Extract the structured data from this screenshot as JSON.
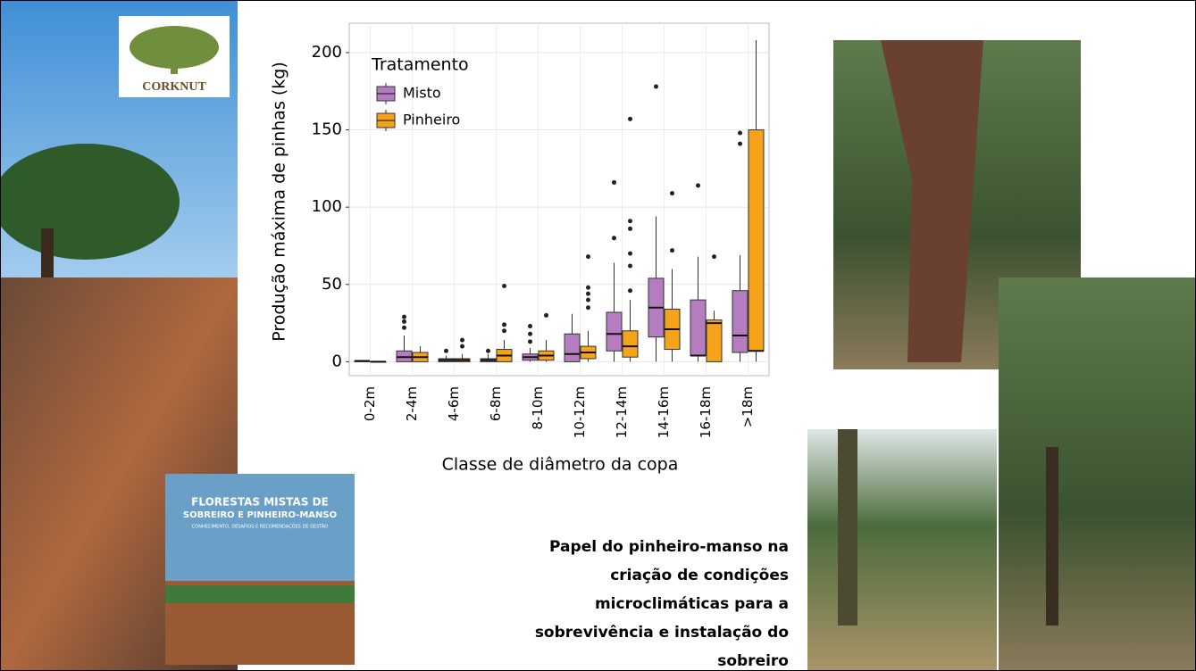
{
  "slide": {
    "logo": "CORKNUT",
    "book_title": "FLORESTAS MISTAS DE",
    "book_title_2": "SOBREIRO E PINHEIRO-MANSO",
    "book_subtitle": "CONHECIMENTO, DESAFIOS E RECOMENDAÇÕES DE GESTÃO",
    "caption": [
      "Papel do pinheiro-manso na",
      "criação de condições",
      "microclimáticas para a",
      "sobrevivência e instalação do",
      "sobreiro"
    ]
  },
  "chart_data": {
    "type": "boxplot",
    "x_label": "Classe de diâmetro da copa",
    "y_label": "Produção máxima de pinhas (kg)",
    "legend_title": "Tratamento",
    "legend_position": "upper-left",
    "grid": true,
    "categories": [
      "0-2m",
      "2-4m",
      "4-6m",
      "6-8m",
      "8-10m",
      "10-12m",
      "12-14m",
      "14-16m",
      "16-18m",
      ">18m"
    ],
    "ylim": [
      -9,
      219
    ],
    "yticks": [
      0,
      50,
      100,
      150,
      200
    ],
    "series": [
      {
        "name": "Misto",
        "color": "#b57cc0",
        "min": [
          0,
          0,
          0,
          0,
          0,
          0,
          0,
          0,
          0,
          0
        ],
        "q1": [
          0,
          0,
          0,
          0,
          1,
          0,
          7,
          16,
          4,
          6
        ],
        "median": [
          0.5,
          3,
          1,
          1,
          3,
          5,
          18,
          35,
          4,
          17
        ],
        "q3": [
          0.5,
          7,
          2,
          2,
          5,
          18,
          32,
          54,
          40,
          46
        ],
        "max": [
          1,
          17,
          4,
          5,
          9,
          31,
          64,
          94,
          68,
          69
        ],
        "outliers": [
          [],
          [
            22,
            26,
            29
          ],
          [
            7
          ],
          [
            7
          ],
          [
            13,
            18,
            23
          ],
          [],
          [
            80,
            116
          ],
          [
            178
          ],
          [
            114
          ],
          [
            141,
            148
          ]
        ]
      },
      {
        "name": "Pinheiro",
        "color": "#f5a31a",
        "min": [
          0,
          0,
          0,
          0,
          0,
          0,
          0,
          0,
          0,
          0
        ],
        "q1": [
          0,
          0,
          0,
          0,
          1,
          2,
          3,
          8,
          0,
          7
        ],
        "median": [
          0,
          3,
          1,
          4,
          4,
          6,
          10,
          21,
          25,
          7
        ],
        "q3": [
          0,
          6,
          2,
          8,
          7,
          10,
          20,
          34,
          27,
          150
        ],
        "max": [
          0,
          10,
          5,
          14,
          14,
          20,
          40,
          60,
          33,
          208
        ],
        "outliers": [
          [],
          [],
          [
            10,
            14
          ],
          [
            20,
            24,
            49
          ],
          [
            30
          ],
          [
            35,
            40,
            44,
            48,
            68
          ],
          [
            46,
            62,
            70,
            86,
            91,
            157
          ],
          [
            72,
            109
          ],
          [
            68
          ],
          []
        ]
      }
    ]
  }
}
